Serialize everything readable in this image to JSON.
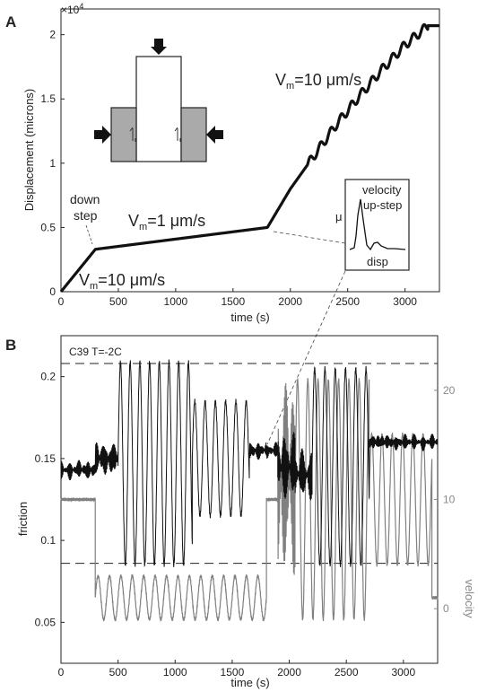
{
  "panel_a_letter": "A",
  "panel_b_letter": "B",
  "chart_data": [
    {
      "type": "line",
      "panel": "A",
      "xlabel": "time (s)",
      "ylabel": "Displacement (microns)",
      "y_scale_label": "×10^4",
      "y_scale_base": "×10",
      "y_scale_exp": "4",
      "xlim": [
        0,
        3300
      ],
      "ylim": [
        0,
        2.2
      ],
      "xticks": [
        0,
        500,
        1000,
        1500,
        2000,
        2500,
        3000
      ],
      "yticks": [
        0,
        0.5,
        1,
        1.5,
        2
      ],
      "series": [
        {
          "x": [
            0,
            300,
            1800,
            2000,
            2200,
            2400,
            2600,
            2800,
            3000,
            3200,
            3250,
            3300
          ],
          "y": [
            0,
            0.33,
            0.5,
            0.8,
            1.05,
            1.3,
            1.52,
            1.73,
            1.92,
            2.07,
            2.07,
            2.07
          ]
        }
      ],
      "annotations": {
        "down_step": [
          "down",
          "step"
        ],
        "vm_slow": {
          "pre": "V",
          "sub": "m",
          "post": "=1 μm/s"
        },
        "vm_fast_start": {
          "pre": "V",
          "sub": "m",
          "post": "=10 μm/s"
        },
        "vm_fast_end": {
          "pre": "V",
          "sub": "m",
          "post": "=10 μm/s"
        }
      },
      "inset": {
        "mu": "μ",
        "title_line1": "velocity",
        "title_line2": "up-step",
        "xlabel": "disp"
      }
    },
    {
      "type": "line",
      "panel": "B",
      "title": "C39 T=-2C",
      "xlabel": "time (s)",
      "ylabel_left": "friction",
      "ylabel_right": "velocity",
      "xlim": [
        0,
        3300
      ],
      "ylim_left": [
        0.025,
        0.225
      ],
      "ylim_right": [
        -5,
        25
      ],
      "xticks": [
        0,
        500,
        1000,
        1500,
        2000,
        2500,
        3000
      ],
      "yticks_left": [
        0.05,
        0.1,
        0.15,
        0.2
      ],
      "yticks_right": [
        0,
        10,
        20
      ],
      "reference_lines_friction": [
        0.208,
        0.086
      ],
      "series": [
        {
          "axis": "left",
          "segments": [
            {
              "t0": 0,
              "t1": 300,
              "level": 0.143,
              "amp": 0.005
            },
            {
              "t0": 300,
              "t1": 500,
              "level": 0.15,
              "amp": 0.01
            },
            {
              "t0": 500,
              "t1": 1150,
              "level": 0.147,
              "amp": 0.062,
              "period": 85
            },
            {
              "t0": 1150,
              "t1": 1650,
              "level": 0.15,
              "amp": 0.035,
              "period": 90
            },
            {
              "t0": 1650,
              "t1": 1800,
              "level": 0.155,
              "amp": 0.005
            },
            {
              "t0": 1800,
              "t1": 1900,
              "level": 0.155,
              "amp": 0.004
            },
            {
              "t0": 1900,
              "t1": 2050,
              "level": 0.145,
              "amp": 0.02
            },
            {
              "t0": 2050,
              "t1": 2200,
              "level": 0.14,
              "amp": 0.015
            },
            {
              "t0": 2200,
              "t1": 2700,
              "level": 0.145,
              "amp": 0.06,
              "period": 90
            },
            {
              "t0": 2700,
              "t1": 3300,
              "level": 0.16,
              "amp": 0.004
            }
          ]
        },
        {
          "axis": "right",
          "segments": [
            {
              "t0": 0,
              "t1": 300,
              "level": 10,
              "amp": 0
            },
            {
              "t0": 300,
              "t1": 1800,
              "level": 1,
              "amp": 2,
              "period": 100
            },
            {
              "t0": 1800,
              "t1": 1900,
              "level": 10,
              "amp": 0
            },
            {
              "t0": 1900,
              "t1": 2050,
              "level": 12,
              "amp": 9
            },
            {
              "t0": 2050,
              "t1": 2700,
              "level": 10,
              "amp": 11,
              "period": 90
            },
            {
              "t0": 2700,
              "t1": 3250,
              "level": 10,
              "amp": 6,
              "period": 90
            },
            {
              "t0": 3250,
              "t1": 3300,
              "level": 1,
              "amp": 0
            }
          ]
        }
      ]
    }
  ]
}
